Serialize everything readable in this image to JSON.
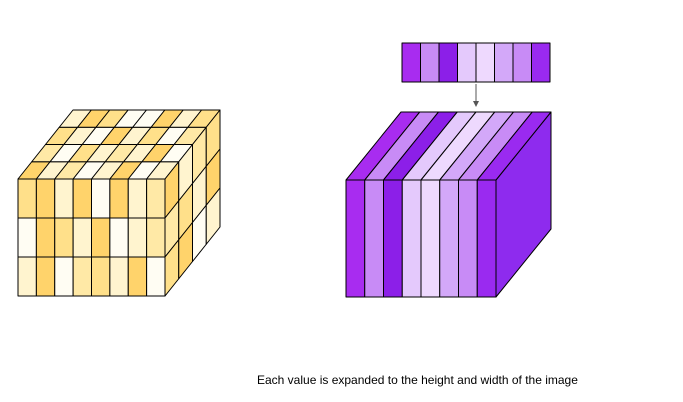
{
  "caption": "Each value is expanded to the height and width of the image",
  "colors": {
    "stroke": "#000000",
    "arrow": "#555555",
    "yellow_palette": [
      "#FFE08A",
      "#FFD36B",
      "#FFF4CF",
      "#FFFDF3",
      "#FFE9A6"
    ],
    "purple_palette": [
      "#A82CF0",
      "#C88BF6",
      "#8C1FE8",
      "#E4C9FC",
      "#EED9FE",
      "#D3A8F9",
      "#9A2AF0"
    ],
    "purple_side": "#8E2BEE"
  },
  "yellow_cube": {
    "front_grid": [
      [
        0,
        1,
        2,
        1,
        3,
        1,
        2,
        4
      ],
      [
        3,
        1,
        0,
        2,
        1,
        3,
        2,
        4
      ],
      [
        2,
        1,
        3,
        4,
        0,
        2,
        1,
        3
      ]
    ],
    "top_grid": [
      [
        1,
        2,
        4,
        3,
        2,
        1,
        3,
        2
      ],
      [
        4,
        3,
        0,
        2,
        4,
        2,
        1,
        3
      ],
      [
        0,
        2,
        3,
        1,
        2,
        0,
        3,
        4
      ],
      [
        2,
        1,
        0,
        3,
        3,
        1,
        2,
        0
      ]
    ],
    "side_grid": [
      [
        1,
        2,
        4,
        0
      ],
      [
        4,
        0,
        2,
        1
      ],
      [
        0,
        1,
        3,
        2
      ]
    ]
  },
  "purple_cube": {
    "vector_labels": [],
    "stripes": [
      0,
      1,
      2,
      3,
      4,
      5,
      1,
      6
    ]
  }
}
